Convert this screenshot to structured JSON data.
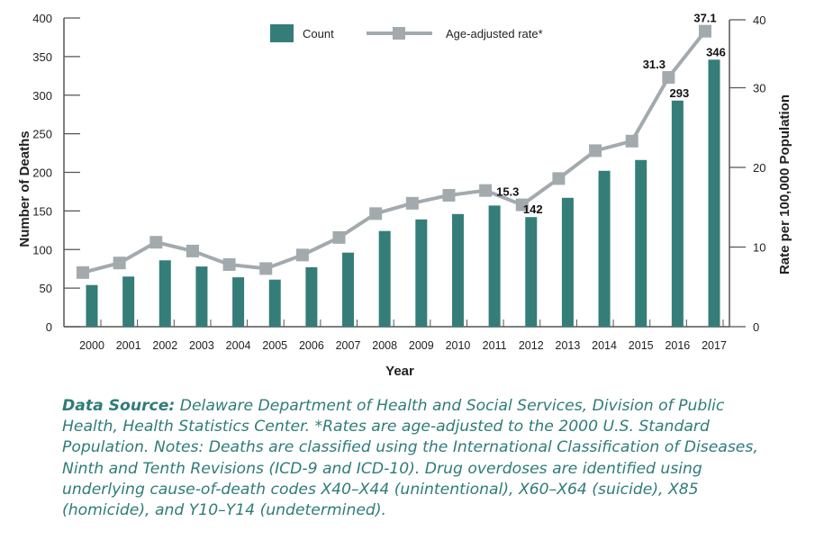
{
  "chart_data": {
    "type": "bar+line",
    "categories": [
      "2000",
      "2001",
      "2002",
      "2003",
      "2004",
      "2005",
      "2006",
      "2007",
      "2008",
      "2009",
      "2010",
      "2011",
      "2012",
      "2013",
      "2014",
      "2015",
      "2016",
      "2017"
    ],
    "series": [
      {
        "name": "Count",
        "type": "bar",
        "axis": "left",
        "color": "#357d79",
        "values": [
          54,
          65,
          86,
          78,
          64,
          61,
          77,
          96,
          124,
          139,
          146,
          157,
          142,
          167,
          202,
          216,
          293,
          346
        ]
      },
      {
        "name": "Age-adjusted rate*",
        "type": "line",
        "axis": "right",
        "color": "#a3aaae",
        "values": [
          6.8,
          8.0,
          10.6,
          9.5,
          7.8,
          7.3,
          9.0,
          11.2,
          14.2,
          15.5,
          16.5,
          17.1,
          15.3,
          18.6,
          22.1,
          23.3,
          31.3,
          37.1
        ]
      }
    ],
    "data_labels": [
      {
        "series": "Count",
        "category": "2012",
        "text": "142"
      },
      {
        "series": "Count",
        "category": "2016",
        "text": "293"
      },
      {
        "series": "Count",
        "category": "2017",
        "text": "346"
      },
      {
        "series": "Age-adjusted rate*",
        "category": "2012",
        "text": "15.3"
      },
      {
        "series": "Age-adjusted rate*",
        "category": "2016",
        "text": "31.3"
      },
      {
        "series": "Age-adjusted rate*",
        "category": "2017",
        "text": "37.1"
      }
    ],
    "xlabel": "Year",
    "ylabel": "Number of Deaths",
    "y2label": "Rate per 100,000 Population",
    "ylim": [
      0,
      400
    ],
    "y2lim": [
      0,
      40
    ],
    "yticks": [
      "0",
      "50",
      "100",
      "150",
      "200",
      "250",
      "300",
      "350",
      "400"
    ],
    "y2ticks": [
      "0",
      "10",
      "20",
      "30",
      "40"
    ],
    "legend": {
      "placement": "top-center",
      "entries": [
        "Count",
        "Age-adjusted rate*"
      ]
    },
    "grid": false
  },
  "caption": {
    "label": "Data Source:",
    "text": " Delaware Department of Health and Social Services, Division of Public Health, Health Statistics Center. *Rates are age-adjusted to the 2000 U.S. Standard Population. Notes: Deaths are classified using the International Classification of Diseases, Ninth and Tenth Revisions (ICD-9 and ICD-10). Drug overdoses are identified using underlying cause-of-death codes X40–X44 (unintentional), X60–X64 (suicide), X85 (homicide), and Y10–Y14 (undetermined)."
  }
}
